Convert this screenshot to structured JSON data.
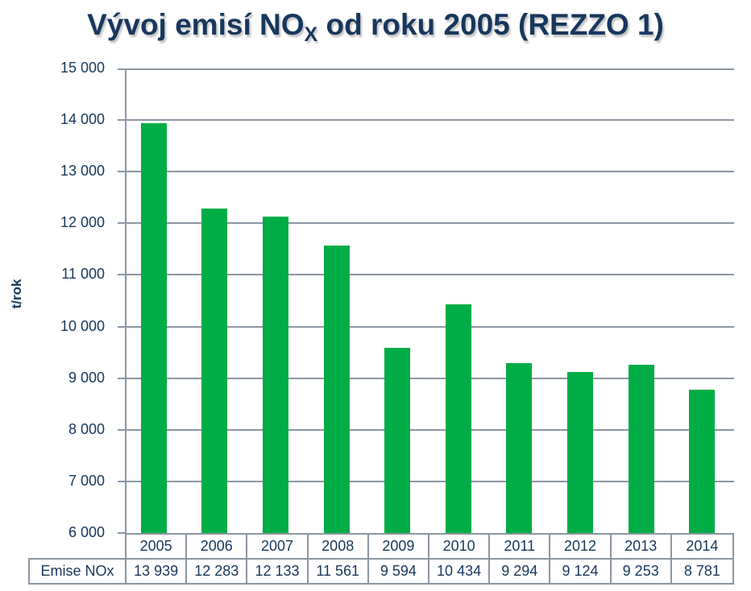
{
  "title": {
    "prefix": "Vývoj emisí NO",
    "subscript": "X",
    "suffix": " od roku 2005 (REZZO 1)"
  },
  "chart_data": {
    "type": "bar",
    "title": "Vývoj emisí NOX od roku 2005 (REZZO 1)",
    "xlabel": "",
    "ylabel": "t/rok",
    "ylim": [
      6000,
      15000
    ],
    "ytick_step": 1000,
    "ytick_labels": [
      "6 000",
      "7 000",
      "8 000",
      "9 000",
      "10 000",
      "11 000",
      "12 000",
      "13 000",
      "14 000",
      "15 000"
    ],
    "grid": true,
    "legend_position": "none",
    "categories": [
      "2005",
      "2006",
      "2007",
      "2008",
      "2009",
      "2010",
      "2011",
      "2012",
      "2013",
      "2014"
    ],
    "series": [
      {
        "name": "Emise NOx",
        "values": [
          13939,
          12283,
          12133,
          11561,
          9594,
          10434,
          9294,
          9124,
          9253,
          8781
        ],
        "value_labels": [
          "13 939",
          "12 283",
          "12 133",
          "11 561",
          "9 594",
          "10 434",
          "9 294",
          "9 124",
          "9 253",
          "8 781"
        ]
      }
    ],
    "colors": {
      "bar": "#00AC46",
      "grid": "#8C96A2",
      "text": "#17375D",
      "background": "#FFFFFF"
    }
  }
}
